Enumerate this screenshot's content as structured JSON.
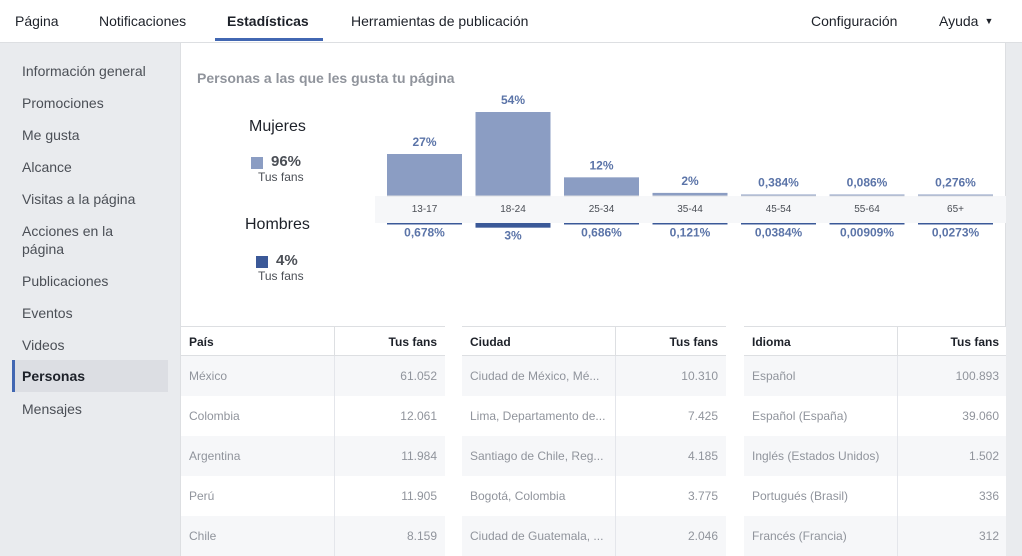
{
  "nav": {
    "tabs": [
      {
        "label": "Página"
      },
      {
        "label": "Notificaciones"
      },
      {
        "label": "Estadísticas"
      },
      {
        "label": "Herramientas de publicación"
      }
    ],
    "settings_label": "Configuración",
    "help_label": "Ayuda",
    "active_tab": "Estadísticas"
  },
  "sidebar": {
    "items": [
      {
        "label": "Información general"
      },
      {
        "label": "Promociones"
      },
      {
        "label": "Me gusta"
      },
      {
        "label": "Alcance"
      },
      {
        "label": "Visitas a la página"
      },
      {
        "label": "Acciones en la página"
      },
      {
        "label": "Publicaciones"
      },
      {
        "label": "Eventos"
      },
      {
        "label": "Videos"
      },
      {
        "label": "Personas"
      },
      {
        "label": "Mensajes"
      }
    ],
    "active_item": "Personas"
  },
  "main": {
    "title": "Personas a las que les gusta tu página",
    "women": {
      "label": "Mujeres",
      "pct": "96%",
      "sub": "Tus fans",
      "color": "#8b9dc3"
    },
    "men": {
      "label": "Hombres",
      "pct": "4%",
      "sub": "Tus fans",
      "color": "#3b5998"
    }
  },
  "chart_data": {
    "type": "bar",
    "categories": [
      "13-17",
      "18-24",
      "25-34",
      "35-44",
      "45-54",
      "55-64",
      "65+"
    ],
    "series": [
      {
        "name": "Mujeres",
        "values": [
          27,
          54,
          12,
          2,
          0.384,
          0.086,
          0.276
        ],
        "labels": [
          "27%",
          "54%",
          "12%",
          "2%",
          "0,384%",
          "0,086%",
          "0,276%"
        ]
      },
      {
        "name": "Hombres",
        "values": [
          0.678,
          3,
          0.686,
          0.121,
          0.0384,
          0.00909,
          0.0273
        ],
        "labels": [
          "0,678%",
          "3%",
          "0,686%",
          "0,121%",
          "0,0384%",
          "0,00909%",
          "0,0273%"
        ]
      }
    ],
    "colors": {
      "women": "#8b9dc3",
      "men": "#3b5998"
    }
  },
  "tables": {
    "country": {
      "header": "País",
      "value_header": "Tus fans",
      "rows": [
        {
          "name": "México",
          "value": "61.052"
        },
        {
          "name": "Colombia",
          "value": "12.061"
        },
        {
          "name": "Argentina",
          "value": "11.984"
        },
        {
          "name": "Perú",
          "value": "11.905"
        },
        {
          "name": "Chile",
          "value": "8.159"
        }
      ]
    },
    "city": {
      "header": "Ciudad",
      "value_header": "Tus fans",
      "rows": [
        {
          "name": "Ciudad de México, Mé...",
          "value": "10.310"
        },
        {
          "name": "Lima, Departamento de...",
          "value": "7.425"
        },
        {
          "name": "Santiago de Chile, Reg...",
          "value": "4.185"
        },
        {
          "name": "Bogotá, Colombia",
          "value": "3.775"
        },
        {
          "name": "Ciudad de Guatemala, ...",
          "value": "2.046"
        }
      ]
    },
    "language": {
      "header": "Idioma",
      "value_header": "Tus fans",
      "rows": [
        {
          "name": "Español",
          "value": "100.893"
        },
        {
          "name": "Español (España)",
          "value": "39.060"
        },
        {
          "name": "Inglés (Estados Unidos)",
          "value": "1.502"
        },
        {
          "name": "Portugués (Brasil)",
          "value": "336"
        },
        {
          "name": "Francés (Francia)",
          "value": "312"
        }
      ]
    }
  }
}
